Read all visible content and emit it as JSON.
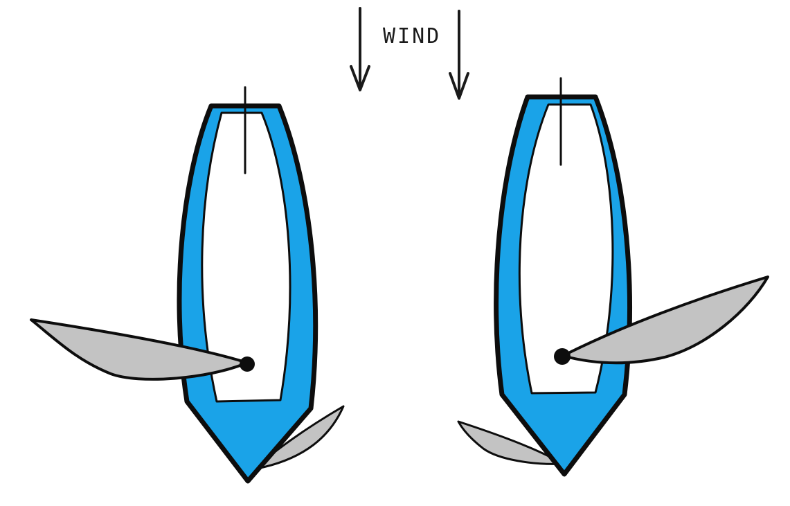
{
  "wind": {
    "label": "WIND"
  },
  "colors": {
    "hull": "#1aa3e8",
    "outline": "#0d0d0d",
    "sail": "#c3c3c3",
    "deck": "#ffffff",
    "arrow": "#1a1a1a"
  },
  "boats": [
    {
      "name": "boat-left"
    },
    {
      "name": "boat-right"
    }
  ]
}
